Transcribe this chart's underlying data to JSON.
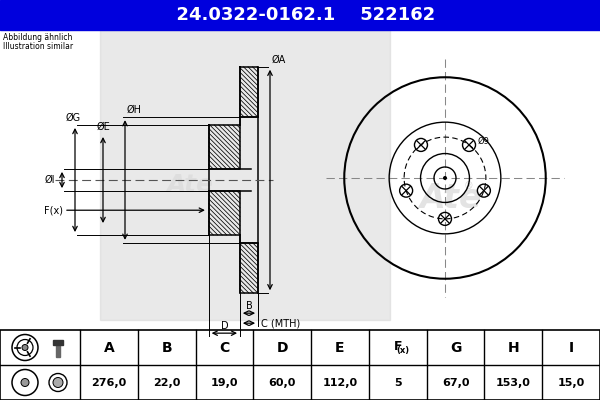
{
  "title_part": "24.0322-0162.1",
  "title_ref": "522162",
  "title_bg": "#0000dd",
  "title_fg": "#ffffff",
  "subtitle_line1": "Abbildung ähnlich",
  "subtitle_line2": "Illustration similar",
  "table_headers": [
    "A",
    "B",
    "C",
    "D",
    "E",
    "F(x)",
    "G",
    "H",
    "I"
  ],
  "table_values": [
    "276,0",
    "22,0",
    "19,0",
    "60,0",
    "112,0",
    "5",
    "67,0",
    "153,0",
    "15,0"
  ],
  "note_phi9": "Ø9",
  "bg_color": "#ffffff",
  "dc": "#000000",
  "gray_bg": "#d4d4d4"
}
